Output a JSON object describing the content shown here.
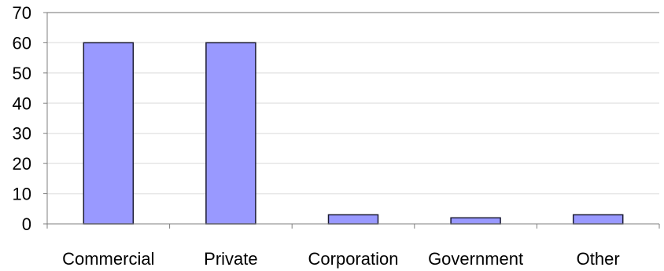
{
  "chart_data": {
    "type": "bar",
    "categories": [
      "Commercial",
      "Private",
      "Corporation",
      "Government",
      "Other"
    ],
    "series": [
      {
        "values": [
          60,
          60,
          3,
          2,
          3
        ]
      }
    ],
    "title": "",
    "xlabel": "",
    "ylabel": "",
    "ylim": [
      0,
      70
    ],
    "yticks": [
      0,
      10,
      20,
      30,
      40,
      50,
      60,
      70
    ],
    "grid": true,
    "legend": "none",
    "colors": {
      "bar_fill": "#9999ff",
      "bar_stroke": "#1a1a33",
      "grid": "#e6e6e6",
      "axis": "#7f7f7f"
    }
  }
}
